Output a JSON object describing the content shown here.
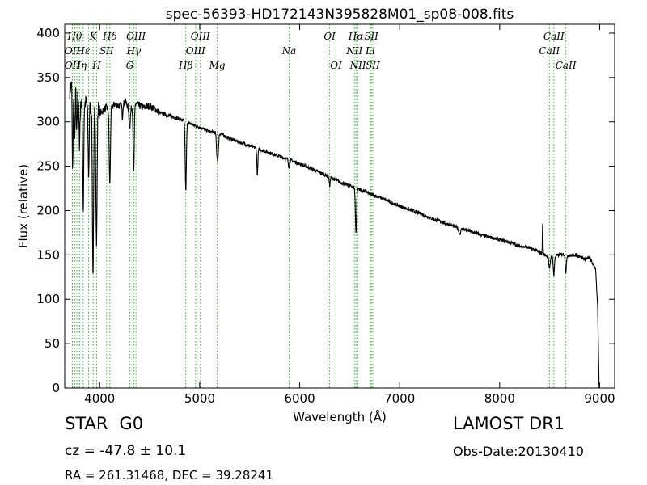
{
  "info": {
    "object_class": "STAR",
    "subclass": "G0",
    "cz_label": "cz = ",
    "cz_value": "-47.8",
    "pm": "±",
    "cz_error": "10.1",
    "survey": "LAMOST DR1",
    "obs_date": "Obs-Date:20130410",
    "coords": "RA = 261.31468, DEC = 39.28241"
  },
  "chart_data": {
    "type": "line",
    "title": "spec-56393-HD172143N395828M01_sp08-008.fits",
    "xlabel": "Wavelength (Å)",
    "ylabel": "Flux (relative)",
    "xlim": [
      3650,
      9150
    ],
    "ylim": [
      0,
      410
    ],
    "x_ticks": [
      4000,
      5000,
      6000,
      7000,
      8000,
      9000
    ],
    "y_ticks": [
      0,
      50,
      100,
      150,
      200,
      250,
      300,
      350,
      400
    ],
    "grid": false,
    "line_color": "#000000",
    "marker_color": "#33aa33",
    "continuum": [
      [
        3700,
        335
      ],
      [
        3720,
        345
      ],
      [
        3740,
        330
      ],
      [
        3760,
        336
      ],
      [
        3800,
        325
      ],
      [
        3830,
        318
      ],
      [
        3860,
        322
      ],
      [
        3890,
        318
      ],
      [
        3920,
        316
      ],
      [
        3950,
        318
      ],
      [
        3980,
        320
      ],
      [
        4000,
        310
      ],
      [
        4030,
        312
      ],
      [
        4060,
        316
      ],
      [
        4100,
        314
      ],
      [
        4150,
        320
      ],
      [
        4200,
        318
      ],
      [
        4260,
        322
      ],
      [
        4300,
        313
      ],
      [
        4340,
        322
      ],
      [
        4400,
        318
      ],
      [
        4450,
        316
      ],
      [
        4500,
        318
      ],
      [
        4560,
        314
      ],
      [
        4600,
        310
      ],
      [
        4700,
        307
      ],
      [
        4800,
        303
      ],
      [
        4900,
        298
      ],
      [
        5000,
        294
      ],
      [
        5100,
        289
      ],
      [
        5200,
        287
      ],
      [
        5300,
        281
      ],
      [
        5400,
        277
      ],
      [
        5500,
        273
      ],
      [
        5600,
        269
      ],
      [
        5700,
        265
      ],
      [
        5800,
        261
      ],
      [
        5900,
        257
      ],
      [
        6000,
        253
      ],
      [
        6100,
        248
      ],
      [
        6200,
        243
      ],
      [
        6300,
        238
      ],
      [
        6400,
        232
      ],
      [
        6500,
        228
      ],
      [
        6600,
        224
      ],
      [
        6700,
        219
      ],
      [
        6800,
        215
      ],
      [
        6900,
        210
      ],
      [
        7000,
        205
      ],
      [
        7100,
        201
      ],
      [
        7200,
        197
      ],
      [
        7300,
        192
      ],
      [
        7400,
        188
      ],
      [
        7500,
        184
      ],
      [
        7600,
        180
      ],
      [
        7700,
        177
      ],
      [
        7800,
        173
      ],
      [
        7900,
        170
      ],
      [
        8000,
        167
      ],
      [
        8100,
        164
      ],
      [
        8200,
        160
      ],
      [
        8300,
        158
      ],
      [
        8400,
        153
      ],
      [
        8450,
        150
      ],
      [
        8500,
        148
      ],
      [
        8550,
        149
      ],
      [
        8600,
        150
      ],
      [
        8650,
        151
      ],
      [
        8700,
        149
      ],
      [
        8750,
        150
      ],
      [
        8800,
        149
      ],
      [
        8850,
        145
      ],
      [
        8900,
        147
      ],
      [
        8930,
        140
      ],
      [
        8960,
        135
      ],
      [
        8980,
        90
      ],
      [
        8995,
        0
      ],
      [
        9010,
        0
      ]
    ],
    "absorption_features": [
      {
        "center": 3728,
        "depth": 100,
        "width": 5
      },
      {
        "center": 3750,
        "depth": 60,
        "width": 4
      },
      {
        "center": 3770,
        "depth": 50,
        "width": 4
      },
      {
        "center": 3798,
        "depth": 60,
        "width": 4
      },
      {
        "center": 3835,
        "depth": 120,
        "width": 5
      },
      {
        "center": 3889,
        "depth": 80,
        "width": 5
      },
      {
        "center": 3933,
        "depth": 190,
        "width": 6
      },
      {
        "center": 3968,
        "depth": 155,
        "width": 6
      },
      {
        "center": 4101,
        "depth": 85,
        "width": 6
      },
      {
        "center": 4227,
        "depth": 15,
        "width": 4
      },
      {
        "center": 4300,
        "depth": 18,
        "width": 7
      },
      {
        "center": 4340,
        "depth": 80,
        "width": 6
      },
      {
        "center": 4861,
        "depth": 78,
        "width": 6
      },
      {
        "center": 5172,
        "depth": 20,
        "width": 6
      },
      {
        "center": 5183,
        "depth": 25,
        "width": 6
      },
      {
        "center": 5577,
        "depth": 30,
        "width": 5
      },
      {
        "center": 5893,
        "depth": 8,
        "width": 6
      },
      {
        "center": 6300,
        "depth": 10,
        "width": 5
      },
      {
        "center": 6563,
        "depth": 50,
        "width": 6
      },
      {
        "center": 7600,
        "depth": 6,
        "width": 10
      },
      {
        "center": 8498,
        "depth": 15,
        "width": 6
      },
      {
        "center": 8542,
        "depth": 22,
        "width": 6
      },
      {
        "center": 8662,
        "depth": 20,
        "width": 6
      }
    ],
    "emission_features": [
      {
        "center": 3722,
        "height": 25,
        "width": 3
      },
      {
        "center": 8430,
        "height": 35,
        "width": 3
      }
    ],
    "line_markers": [
      {
        "wavelength": 3727,
        "label": "OII",
        "italic": true,
        "row": 2
      },
      {
        "wavelength": 3727,
        "label": "OII",
        "italic": true,
        "row": 3
      },
      {
        "wavelength": 3750,
        "label": "Hθ",
        "italic": true,
        "row": 1
      },
      {
        "wavelength": 3771,
        "label": "",
        "italic": true,
        "row": 1
      },
      {
        "wavelength": 3798,
        "label": "Hη",
        "italic": true,
        "row": 3
      },
      {
        "wavelength": 3835,
        "label": "Hε",
        "italic": true,
        "row": 2
      },
      {
        "wavelength": 3889,
        "label": "",
        "italic": true,
        "row": 2
      },
      {
        "wavelength": 3934,
        "label": "K",
        "italic": true,
        "row": 1
      },
      {
        "wavelength": 3969,
        "label": "H",
        "italic": true,
        "row": 3
      },
      {
        "wavelength": 4069,
        "label": "SII",
        "italic": true,
        "row": 2
      },
      {
        "wavelength": 4102,
        "label": "Hδ",
        "italic": true,
        "row": 1
      },
      {
        "wavelength": 4300,
        "label": "G",
        "italic": true,
        "row": 3
      },
      {
        "wavelength": 4340,
        "label": "Hγ",
        "italic": true,
        "row": 2
      },
      {
        "wavelength": 4363,
        "label": "OIII",
        "italic": true,
        "row": 1
      },
      {
        "wavelength": 4861,
        "label": "Hβ",
        "italic": true,
        "row": 3
      },
      {
        "wavelength": 4959,
        "label": "OIII",
        "italic": true,
        "row": 2
      },
      {
        "wavelength": 5007,
        "label": "OIII",
        "italic": true,
        "row": 1
      },
      {
        "wavelength": 5175,
        "label": "Mg",
        "italic": true,
        "row": 3
      },
      {
        "wavelength": 5894,
        "label": "Na",
        "italic": true,
        "row": 2
      },
      {
        "wavelength": 6300,
        "label": "OI",
        "italic": true,
        "row": 1
      },
      {
        "wavelength": 6364,
        "label": "OI",
        "italic": true,
        "row": 3
      },
      {
        "wavelength": 6548,
        "label": "NII",
        "italic": true,
        "row": 2
      },
      {
        "wavelength": 6563,
        "label": "Hα",
        "italic": true,
        "row": 1
      },
      {
        "wavelength": 6583,
        "label": "NII",
        "italic": true,
        "row": 3
      },
      {
        "wavelength": 6707,
        "label": "Li",
        "italic": true,
        "row": 2
      },
      {
        "wavelength": 6716,
        "label": "SII",
        "italic": true,
        "row": 1
      },
      {
        "wavelength": 6731,
        "label": "SII",
        "italic": true,
        "row": 3
      },
      {
        "wavelength": 8498,
        "label": "CaII",
        "italic": true,
        "row": 2
      },
      {
        "wavelength": 8542,
        "label": "CaII",
        "italic": true,
        "row": 1
      },
      {
        "wavelength": 8662,
        "label": "CaII",
        "italic": true,
        "row": 3
      }
    ]
  }
}
